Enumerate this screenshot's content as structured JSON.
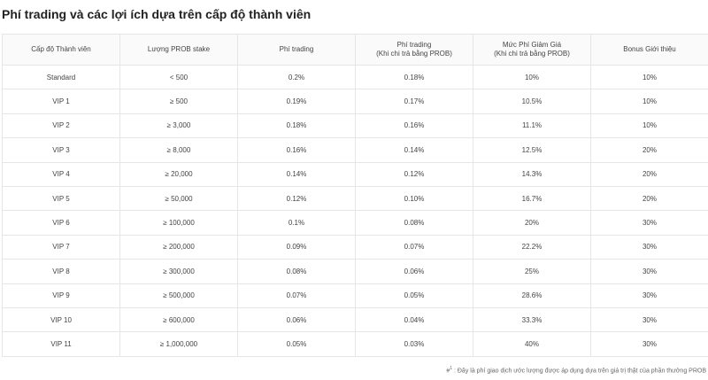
{
  "title": "Phí trading và các lợi ích dựa trên cấp độ thành viên",
  "table": {
    "headers": [
      {
        "line1": "Cấp độ Thành viên",
        "line2": ""
      },
      {
        "line1": "Lượng PROB stake",
        "line2": ""
      },
      {
        "line1": "Phí trading",
        "line2": ""
      },
      {
        "line1": "Phí trading",
        "line2": "(Khi chi trả bằng PROB)"
      },
      {
        "line1": "Mức Phí Giảm Giá",
        "line2": "(Khi chi trả bằng PROB)"
      },
      {
        "line1": "Bonus Giới thiệu",
        "line2": ""
      }
    ],
    "rows": [
      [
        "Standard",
        "< 500",
        "0.2%",
        "0.18%",
        "10%",
        "10%"
      ],
      [
        "VIP 1",
        "≥ 500",
        "0.19%",
        "0.17%",
        "10.5%",
        "10%"
      ],
      [
        "VIP 2",
        "≥ 3,000",
        "0.18%",
        "0.16%",
        "11.1%",
        "10%"
      ],
      [
        "VIP 3",
        "≥ 8,000",
        "0.16%",
        "0.14%",
        "12.5%",
        "20%"
      ],
      [
        "VIP 4",
        "≥ 20,000",
        "0.14%",
        "0.12%",
        "14.3%",
        "20%"
      ],
      [
        "VIP 5",
        "≥ 50,000",
        "0.12%",
        "0.10%",
        "16.7%",
        "20%"
      ],
      [
        "VIP 6",
        "≥ 100,000",
        "0.1%",
        "0.08%",
        "20%",
        "30%"
      ],
      [
        "VIP 7",
        "≥ 200,000",
        "0.09%",
        "0.07%",
        "22.2%",
        "30%"
      ],
      [
        "VIP 8",
        "≥ 300,000",
        "0.08%",
        "0.06%",
        "25%",
        "30%"
      ],
      [
        "VIP 9",
        "≥ 500,000",
        "0.07%",
        "0.05%",
        "28.6%",
        "30%"
      ],
      [
        "VIP 10",
        "≥ 600,000",
        "0.06%",
        "0.04%",
        "33.3%",
        "30%"
      ],
      [
        "VIP 11",
        "≥ 1,000,000",
        "0.05%",
        "0.03%",
        "40%",
        "30%"
      ]
    ]
  },
  "footnote": {
    "mark": "#",
    "sup": "1",
    "text": " : Đây là phí giao dịch ước lượng được áp dụng dựa trên giá trị thật của phần thưởng PROB"
  },
  "colors": {
    "border": "#e6e6e6",
    "header_bg": "#fafafa",
    "text": "#444444"
  }
}
